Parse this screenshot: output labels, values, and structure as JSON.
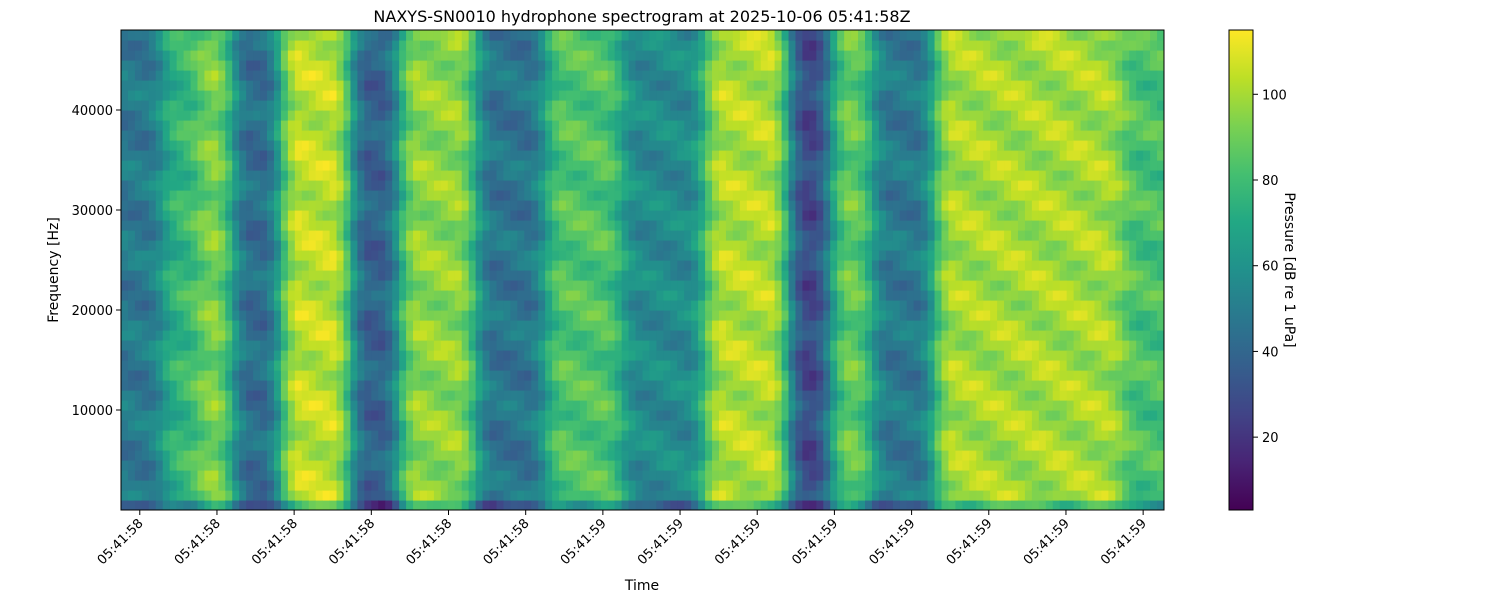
{
  "chart_data": {
    "type": "heatmap",
    "title": "NAXYS-SN0010 hydrophone spectrogram at 2025-10-06 05:41:58Z",
    "xlabel": "Time",
    "ylabel": "Frequency [Hz]",
    "colorbar_label": "Pressure [dB re 1 uPa]",
    "colormap": "viridis",
    "xlim": [
      0,
      1
    ],
    "ylim": [
      0,
      48000
    ],
    "clim": [
      3,
      115
    ],
    "x_ticks": [
      {
        "pos": 0.018,
        "label": "05:41:58"
      },
      {
        "pos": 0.092,
        "label": "05:41:58"
      },
      {
        "pos": 0.166,
        "label": "05:41:58"
      },
      {
        "pos": 0.24,
        "label": "05:41:58"
      },
      {
        "pos": 0.314,
        "label": "05:41:58"
      },
      {
        "pos": 0.388,
        "label": "05:41:58"
      },
      {
        "pos": 0.462,
        "label": "05:41:59"
      },
      {
        "pos": 0.536,
        "label": "05:41:59"
      },
      {
        "pos": 0.61,
        "label": "05:41:59"
      },
      {
        "pos": 0.684,
        "label": "05:41:59"
      },
      {
        "pos": 0.758,
        "label": "05:41:59"
      },
      {
        "pos": 0.832,
        "label": "05:41:59"
      },
      {
        "pos": 0.906,
        "label": "05:41:59"
      },
      {
        "pos": 0.98,
        "label": "05:41:59"
      }
    ],
    "y_ticks": [
      10000,
      20000,
      30000,
      40000
    ],
    "colorbar_ticks": [
      20,
      40,
      60,
      80,
      100
    ],
    "time_bands": [
      {
        "t0": 0.0,
        "t1": 0.04,
        "level": 52
      },
      {
        "t0": 0.04,
        "t1": 0.075,
        "level": 80
      },
      {
        "t0": 0.075,
        "t1": 0.11,
        "level": 97
      },
      {
        "t0": 0.11,
        "t1": 0.155,
        "level": 47
      },
      {
        "t0": 0.155,
        "t1": 0.22,
        "level": 108
      },
      {
        "t0": 0.22,
        "t1": 0.265,
        "level": 42
      },
      {
        "t0": 0.265,
        "t1": 0.34,
        "level": 100
      },
      {
        "t0": 0.34,
        "t1": 0.41,
        "level": 50
      },
      {
        "t0": 0.41,
        "t1": 0.48,
        "level": 88
      },
      {
        "t0": 0.48,
        "t1": 0.56,
        "level": 60
      },
      {
        "t0": 0.56,
        "t1": 0.64,
        "level": 106
      },
      {
        "t0": 0.64,
        "t1": 0.68,
        "level": 32
      },
      {
        "t0": 0.68,
        "t1": 0.72,
        "level": 92
      },
      {
        "t0": 0.72,
        "t1": 0.78,
        "level": 52
      },
      {
        "t0": 0.78,
        "t1": 0.96,
        "level": 104
      },
      {
        "t0": 0.96,
        "t1": 1.0,
        "level": 86
      }
    ]
  }
}
